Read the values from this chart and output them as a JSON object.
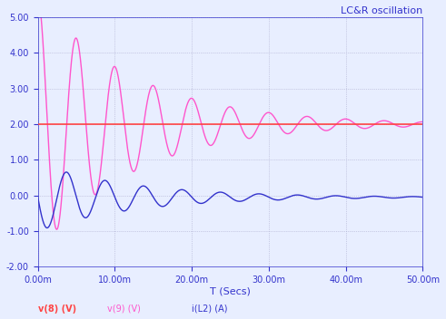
{
  "title": "LC&R oscillation",
  "xlabel": "T (Secs)",
  "ylabel": "",
  "xlim": [
    0,
    0.05
  ],
  "ylim": [
    -2.0,
    5.0
  ],
  "yticks": [
    -2.0,
    -1.0,
    0.0,
    1.0,
    2.0,
    3.0,
    4.0,
    5.0
  ],
  "xticks": [
    0.0,
    0.01,
    0.02,
    0.03,
    0.04,
    0.05
  ],
  "xtick_labels": [
    "0.00m",
    "10.00m",
    "20.00m",
    "30.00m",
    "40.00m",
    "50.00m"
  ],
  "legend_labels": [
    "v(8) (V)",
    "v(9) (V)",
    "i(L2) (A)"
  ],
  "legend_colors": [
    "#ff4444",
    "#ff55cc",
    "#3333cc"
  ],
  "bg_color": "#e8eeff",
  "grid_color": "#aaaacc",
  "title_color": "#3333cc",
  "axis_color": "#3333cc",
  "tick_color": "#3333cc",
  "v8_dc": 2.0,
  "v9_amplitude_0": 3.6,
  "v9_decay": 80,
  "v9_freq": 200,
  "v9_dc": 2.0,
  "iL2_amplitude_0": 0.95,
  "iL2_decay": 80,
  "iL2_freq": 200,
  "iL2_dc": -0.05
}
